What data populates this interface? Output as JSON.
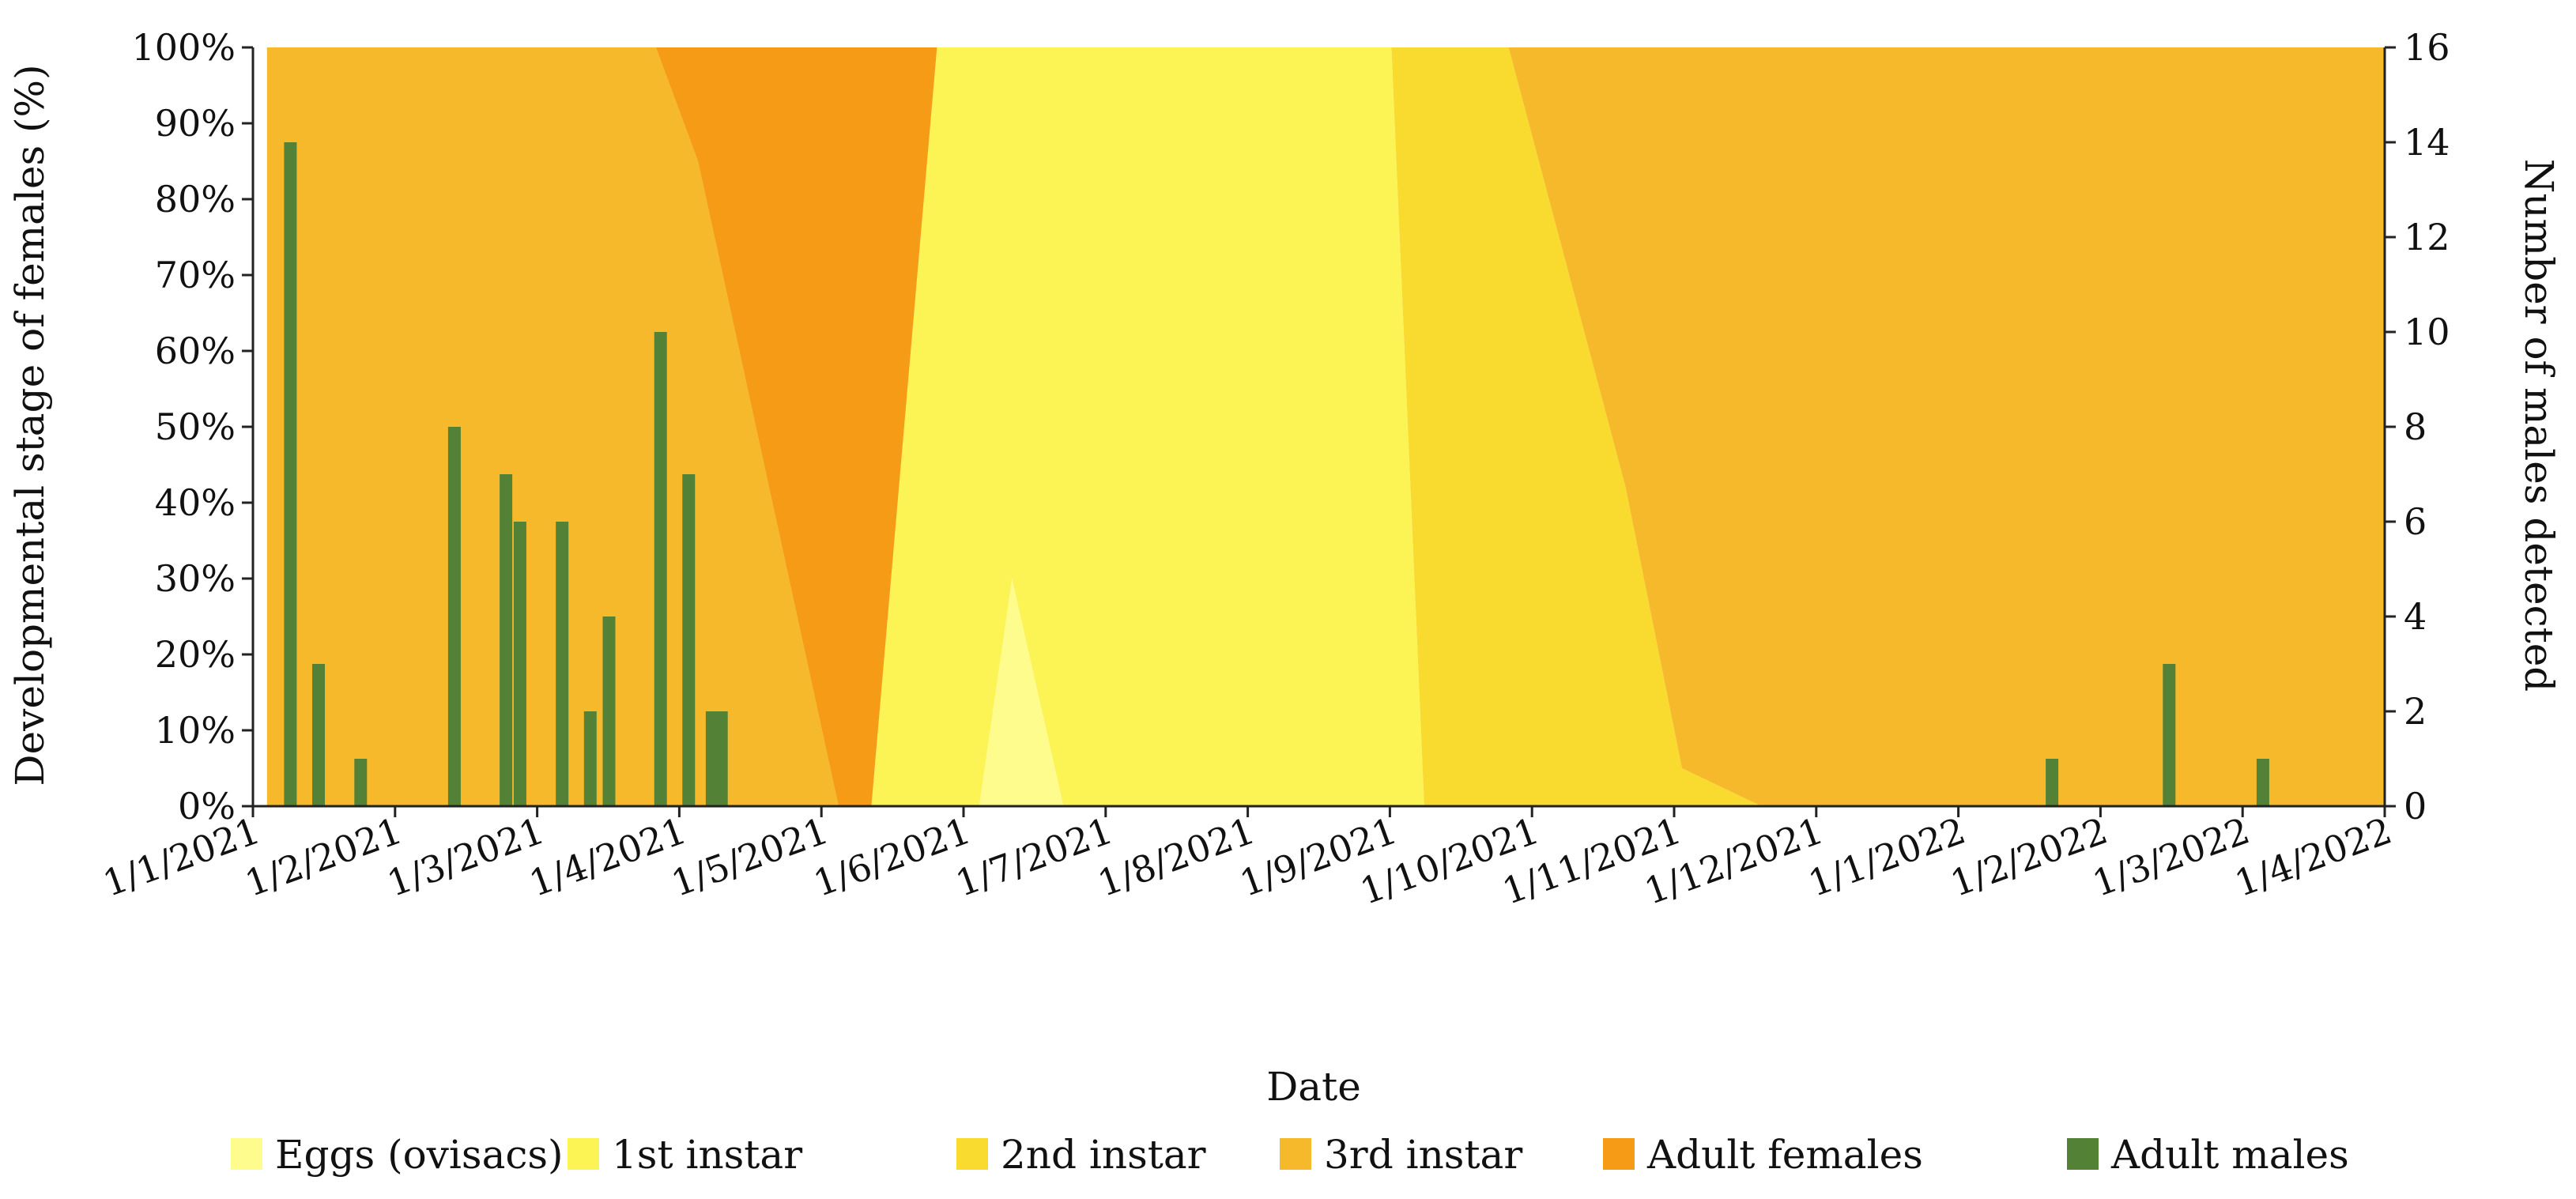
{
  "chart_data": {
    "type": "area",
    "title": "",
    "xlabel": "Date",
    "ylabel": "Developmental stage of females (%)",
    "y2label": "Number of males detected",
    "ylim": [
      0,
      100
    ],
    "y2lim": [
      0,
      16
    ],
    "y_ticks": [
      "0%",
      "10%",
      "20%",
      "30%",
      "40%",
      "50%",
      "60%",
      "70%",
      "80%",
      "90%",
      "100%"
    ],
    "y2_ticks": [
      "0",
      "2",
      "4",
      "6",
      "8",
      "10",
      "12",
      "14",
      "16"
    ],
    "x_ticks": [
      "1/1/2021",
      "1/2/2021",
      "1/3/2021",
      "1/4/2021",
      "1/5/2021",
      "1/6/2021",
      "1/7/2021",
      "1/8/2021",
      "1/9/2021",
      "1/10/2021",
      "1/11/2021",
      "1/12/2021",
      "1/1/2022",
      "1/2/2022",
      "1/3/2022",
      "1/4/2022"
    ],
    "x_range_days": [
      0,
      455
    ],
    "legend_position": "bottom",
    "stage_series": [
      {
        "name": "Eggs (ovisacs)",
        "color": "#FEFC8C",
        "points": [
          [
            3,
            0
          ],
          [
            86,
            0
          ],
          [
            95,
            0
          ],
          [
            125,
            0
          ],
          [
            132,
            0
          ],
          [
            146,
            0
          ],
          [
            155,
            0
          ],
          [
            162,
            30
          ],
          [
            173,
            0
          ],
          [
            193,
            0
          ],
          [
            243,
            0
          ],
          [
            250,
            0
          ],
          [
            268,
            0
          ],
          [
            293,
            0
          ],
          [
            305,
            0
          ],
          [
            322,
            0
          ],
          [
            333,
            0
          ],
          [
            455,
            0
          ]
        ]
      },
      {
        "name": "1st instar",
        "color": "#FCF354",
        "points": [
          [
            3,
            0
          ],
          [
            86,
            0
          ],
          [
            95,
            0
          ],
          [
            125,
            0
          ],
          [
            132,
            0
          ],
          [
            146,
            100
          ],
          [
            155,
            100
          ],
          [
            162,
            70
          ],
          [
            173,
            100
          ],
          [
            193,
            100
          ],
          [
            243,
            100
          ],
          [
            250,
            0
          ],
          [
            268,
            0
          ],
          [
            293,
            0
          ],
          [
            305,
            0
          ],
          [
            322,
            0
          ],
          [
            333,
            0
          ],
          [
            455,
            0
          ]
        ]
      },
      {
        "name": "2nd instar",
        "color": "#F9DB2F",
        "points": [
          [
            3,
            0
          ],
          [
            86,
            0
          ],
          [
            95,
            0
          ],
          [
            125,
            0
          ],
          [
            132,
            0
          ],
          [
            146,
            0
          ],
          [
            155,
            0
          ],
          [
            162,
            0
          ],
          [
            173,
            0
          ],
          [
            193,
            0
          ],
          [
            243,
            0
          ],
          [
            250,
            100
          ],
          [
            268,
            100
          ],
          [
            293,
            42
          ],
          [
            305,
            5
          ],
          [
            322,
            0
          ],
          [
            333,
            0
          ],
          [
            455,
            0
          ]
        ]
      },
      {
        "name": "3rd instar",
        "color": "#F6B92B",
        "points": [
          [
            3,
            100
          ],
          [
            86,
            100
          ],
          [
            95,
            85
          ],
          [
            125,
            0
          ],
          [
            132,
            0
          ],
          [
            146,
            0
          ],
          [
            155,
            0
          ],
          [
            162,
            0
          ],
          [
            173,
            0
          ],
          [
            193,
            0
          ],
          [
            243,
            0
          ],
          [
            250,
            0
          ],
          [
            268,
            0
          ],
          [
            293,
            58
          ],
          [
            305,
            95
          ],
          [
            322,
            100
          ],
          [
            333,
            100
          ],
          [
            455,
            100
          ]
        ]
      },
      {
        "name": "Adult females",
        "color": "#F59B16",
        "points": [
          [
            3,
            0
          ],
          [
            86,
            0
          ],
          [
            95,
            15
          ],
          [
            125,
            100
          ],
          [
            132,
            100
          ],
          [
            146,
            0
          ],
          [
            155,
            0
          ],
          [
            162,
            0
          ],
          [
            173,
            0
          ],
          [
            193,
            0
          ],
          [
            243,
            0
          ],
          [
            250,
            0
          ],
          [
            268,
            0
          ],
          [
            293,
            0
          ],
          [
            305,
            0
          ],
          [
            322,
            0
          ],
          [
            333,
            0
          ],
          [
            455,
            0
          ]
        ]
      }
    ],
    "male_series": {
      "name": "Adult males",
      "color": "#538135",
      "axis": "right",
      "days": [
        8,
        14,
        23,
        43,
        54,
        57,
        66,
        72,
        76,
        87,
        93,
        98,
        100,
        384,
        409,
        429
      ],
      "values": [
        14,
        3,
        1,
        8,
        7,
        6,
        6,
        2,
        4,
        10,
        7,
        2,
        2,
        1,
        3,
        1
      ]
    }
  }
}
